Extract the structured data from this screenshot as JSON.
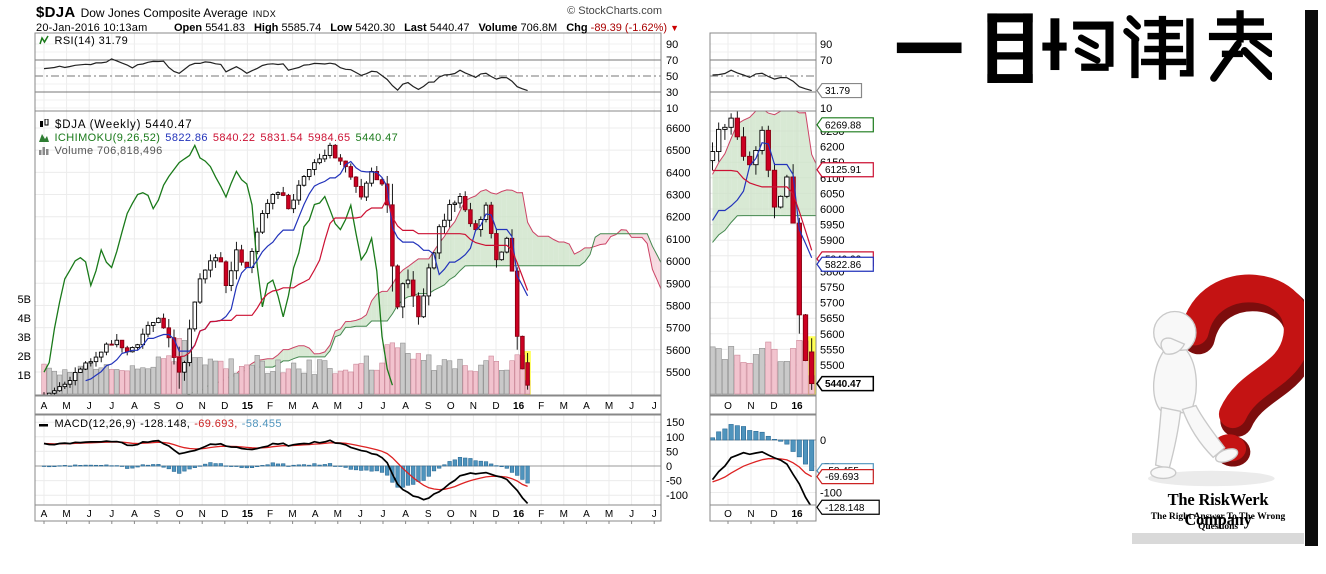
{
  "header": {
    "symbol": "$DJA",
    "name": "Dow Jones Composite Average",
    "exchange": "INDX",
    "copyright": "© StockCharts.com",
    "datetime": "20-Jan-2016 10:13am",
    "quote": {
      "open_label": "Open",
      "open": "5541.83",
      "high_label": "High",
      "high": "5585.74",
      "low_label": "Low",
      "low": "5420.30",
      "last_label": "Last",
      "last": "5440.47",
      "volume_label": "Volume",
      "volume": "706.8M",
      "chg_label": "Chg",
      "chg": "-89.39 (-1.62%)",
      "chg_direction": "down"
    }
  },
  "titles": {
    "japanese": "一目均衡表"
  },
  "logo": {
    "company": "The RiskWerk Company",
    "tagline": "The Right Answer To The Wrong Questions"
  },
  "chart_data": {
    "type": "candlestick",
    "symbol": "$DJA",
    "timeframe": "Weekly",
    "weeks": 94,
    "ichimoku_params": [
      9,
      26,
      52
    ],
    "legend": {
      "rsi_label": "RSI(14)",
      "rsi_value": "31.79",
      "price_label": "$DJA (Weekly)",
      "price_last": "5440.47",
      "ichimoku_label": "ICHIMOKU(9,26,52)",
      "ichimoku_values": [
        "5822.86",
        "5840.22",
        "5831.54",
        "5984.65",
        "5440.47"
      ],
      "ichimoku_value_colors": [
        "#2233bb",
        "#cc1133",
        "#cc1133",
        "#cc1133",
        "#1a7a1a"
      ],
      "volume_label": "Volume",
      "volume_value": "706,818,496",
      "macd_label": "MACD(12,26,9)",
      "macd_values": [
        "-128.148,",
        "-69.693,",
        "-58.455"
      ],
      "macd_value_colors": [
        "#000000",
        "#cc2222",
        "#4f94bd"
      ]
    },
    "axes": {
      "price_ticks": [
        6600,
        6500,
        6400,
        6300,
        6200,
        6100,
        6000,
        5900,
        5800,
        5700,
        5600,
        5500
      ],
      "price_ticks_mini": [
        6250,
        6200,
        6150,
        6100,
        6050,
        6000,
        5950,
        5900,
        5850,
        5800,
        5750,
        5700,
        5650,
        5600,
        5550,
        5500
      ],
      "rsi_ticks": [
        90,
        70,
        50,
        30,
        10
      ],
      "rsi_ticks_mini": [
        90,
        70,
        10
      ],
      "macd_ticks": [
        150,
        100,
        50,
        0,
        -50,
        -100
      ],
      "macd_ticks_mini": [
        0,
        -50,
        -100
      ],
      "volume_ticks": [
        "5B",
        "4B",
        "3B",
        "2B",
        "1B"
      ],
      "months": [
        "A",
        "M",
        "J",
        "J",
        "A",
        "S",
        "O",
        "N",
        "D",
        "15",
        "F",
        "M",
        "A",
        "M",
        "J",
        "J",
        "A",
        "S",
        "O",
        "N",
        "D",
        "16",
        "F",
        "M",
        "A",
        "M",
        "J",
        "J"
      ],
      "months_mini": [
        "O",
        "N",
        "D",
        "16"
      ]
    },
    "callouts": {
      "rsi_mini": [
        {
          "text": "31.79",
          "value": 31.79,
          "color": "#888888"
        }
      ],
      "price_mini": [
        {
          "text": "6269.88",
          "value": 6269.88,
          "color": "#1a7a1a"
        },
        {
          "text": "6125.91",
          "value": 6125.91,
          "color": "#cc1133"
        },
        {
          "text": "5840.22",
          "value": 5840.22,
          "color": "#cc1133"
        },
        {
          "text": "5822.86",
          "value": 5822.86,
          "color": "#2233bb"
        },
        {
          "text": "5440.47",
          "value": 5440.47,
          "color": "#000000",
          "bold": true
        }
      ],
      "macd_mini": [
        {
          "text": "-58.455",
          "value": -58.455,
          "color": "#4f94bd"
        },
        {
          "text": "-69.693",
          "value": -69.693,
          "color": "#cc2222"
        },
        {
          "text": "-128.148",
          "value": -128.148,
          "color": "#000000"
        }
      ]
    },
    "colors": {
      "candle_down": "#cc0022",
      "candle_down_edge": "#880011",
      "cloud_bull": "#cbe2c5",
      "cloud_bear": "#f6cfd8",
      "span_a": "#cc4466",
      "span_b": "#44884f",
      "tenkan": "#2233bb",
      "kijun": "#cc1133",
      "chikou": "#1a7a1a",
      "histogram": "#4f94bd",
      "histogram_edge": "#2a6a96",
      "macd_line": "#000000",
      "signal_line": "#dd2222",
      "volume_up": "#c9c9c9",
      "volume_down": "#f2c3ce",
      "highlight": "#ffff55"
    },
    "series": {
      "last_week_ohlc": [
        5541.83,
        5585.74,
        5420.3,
        5440.47
      ],
      "last_volume_billion": 0.7068,
      "last_rsi": 31.79,
      "last_macd": -128.148,
      "last_signal": -69.693,
      "close_anchors": [
        [
          0,
          5390
        ],
        [
          3,
          5430
        ],
        [
          6,
          5490
        ],
        [
          9,
          5550
        ],
        [
          12,
          5625
        ],
        [
          14,
          5640
        ],
        [
          16,
          5585
        ],
        [
          18,
          5620
        ],
        [
          20,
          5700
        ],
        [
          22,
          5745
        ],
        [
          24,
          5650
        ],
        [
          25,
          5560
        ],
        [
          26,
          5490
        ],
        [
          27,
          5560
        ],
        [
          28,
          5700
        ],
        [
          30,
          5920
        ],
        [
          32,
          6010
        ],
        [
          33,
          6030
        ],
        [
          34,
          5990
        ],
        [
          35,
          5890
        ],
        [
          36,
          5970
        ],
        [
          37,
          6040
        ],
        [
          39,
          5970
        ],
        [
          40,
          6050
        ],
        [
          42,
          6220
        ],
        [
          44,
          6310
        ],
        [
          46,
          6290
        ],
        [
          47,
          6230
        ],
        [
          49,
          6340
        ],
        [
          51,
          6410
        ],
        [
          53,
          6460
        ],
        [
          55,
          6510
        ],
        [
          57,
          6440
        ],
        [
          59,
          6390
        ],
        [
          61,
          6290
        ],
        [
          63,
          6410
        ],
        [
          65,
          6340
        ],
        [
          66,
          6240
        ],
        [
          67,
          5990
        ],
        [
          68,
          5780
        ],
        [
          69,
          5890
        ],
        [
          70,
          5930
        ],
        [
          71,
          5840
        ],
        [
          72,
          5760
        ],
        [
          73,
          5860
        ],
        [
          74,
          5960
        ],
        [
          76,
          6140
        ],
        [
          78,
          6240
        ],
        [
          80,
          6290
        ],
        [
          81,
          6240
        ],
        [
          82,
          6180
        ],
        [
          83,
          6140
        ],
        [
          84,
          6200
        ],
        [
          85,
          6240
        ],
        [
          86,
          6140
        ],
        [
          87,
          6000
        ],
        [
          88,
          6050
        ],
        [
          89,
          6090
        ],
        [
          90,
          5940
        ],
        [
          91,
          5690
        ],
        [
          92,
          5540
        ],
        [
          93,
          5440.47
        ]
      ],
      "range_anchors": [
        [
          0,
          60
        ],
        [
          10,
          55
        ],
        [
          20,
          60
        ],
        [
          24,
          90
        ],
        [
          25,
          130
        ],
        [
          26,
          150
        ],
        [
          28,
          90
        ],
        [
          32,
          70
        ],
        [
          35,
          85
        ],
        [
          40,
          70
        ],
        [
          45,
          65
        ],
        [
          50,
          60
        ],
        [
          55,
          60
        ],
        [
          60,
          65
        ],
        [
          65,
          80
        ],
        [
          66,
          120
        ],
        [
          67,
          250
        ],
        [
          68,
          160
        ],
        [
          69,
          110
        ],
        [
          72,
          100
        ],
        [
          74,
          90
        ],
        [
          78,
          80
        ],
        [
          80,
          70
        ],
        [
          84,
          70
        ],
        [
          86,
          80
        ],
        [
          88,
          70
        ],
        [
          90,
          110
        ],
        [
          91,
          150
        ],
        [
          92,
          130
        ],
        [
          93,
          120
        ]
      ],
      "volume_anchors": [
        [
          0,
          1.3
        ],
        [
          5,
          1.2
        ],
        [
          10,
          1.4
        ],
        [
          15,
          1.3
        ],
        [
          20,
          1.5
        ],
        [
          24,
          1.9
        ],
        [
          26,
          2.6
        ],
        [
          28,
          1.8
        ],
        [
          32,
          1.6
        ],
        [
          35,
          1.8
        ],
        [
          37,
          1.5
        ],
        [
          40,
          1.6
        ],
        [
          45,
          1.5
        ],
        [
          50,
          1.4
        ],
        [
          55,
          1.4
        ],
        [
          60,
          1.5
        ],
        [
          65,
          1.7
        ],
        [
          67,
          3.0
        ],
        [
          68,
          2.4
        ],
        [
          70,
          1.9
        ],
        [
          72,
          1.9
        ],
        [
          74,
          1.8
        ],
        [
          76,
          1.7
        ],
        [
          78,
          1.7
        ],
        [
          80,
          1.8
        ],
        [
          82,
          1.6
        ],
        [
          84,
          1.6
        ],
        [
          86,
          1.7
        ],
        [
          88,
          1.5
        ],
        [
          90,
          1.9
        ],
        [
          91,
          2.1
        ],
        [
          92,
          2.2
        ],
        [
          93,
          0.7068
        ]
      ],
      "rsi_anchors": [
        [
          0,
          60
        ],
        [
          2,
          62
        ],
        [
          4,
          61
        ],
        [
          6,
          63
        ],
        [
          8,
          64
        ],
        [
          10,
          65
        ],
        [
          12,
          67
        ],
        [
          13,
          71
        ],
        [
          14,
          68
        ],
        [
          15,
          67
        ],
        [
          17,
          61
        ],
        [
          19,
          65
        ],
        [
          21,
          67
        ],
        [
          23,
          69
        ],
        [
          24,
          62
        ],
        [
          25,
          57
        ],
        [
          26,
          53
        ],
        [
          27,
          59
        ],
        [
          28,
          63
        ],
        [
          30,
          66
        ],
        [
          32,
          68
        ],
        [
          34,
          64
        ],
        [
          35,
          56
        ],
        [
          36,
          60
        ],
        [
          37,
          63
        ],
        [
          38,
          58
        ],
        [
          39,
          52
        ],
        [
          40,
          56
        ],
        [
          42,
          62
        ],
        [
          44,
          66
        ],
        [
          46,
          64
        ],
        [
          47,
          58
        ],
        [
          49,
          62
        ],
        [
          51,
          64
        ],
        [
          53,
          65
        ],
        [
          55,
          66
        ],
        [
          57,
          61
        ],
        [
          58,
          57
        ],
        [
          59,
          58
        ],
        [
          60,
          54
        ],
        [
          61,
          51
        ],
        [
          62,
          53
        ],
        [
          63,
          57
        ],
        [
          64,
          55
        ],
        [
          65,
          51
        ],
        [
          66,
          47
        ],
        [
          67,
          37
        ],
        [
          68,
          33
        ],
        [
          69,
          40
        ],
        [
          70,
          42
        ],
        [
          71,
          38
        ],
        [
          72,
          34
        ],
        [
          73,
          38
        ],
        [
          74,
          42
        ],
        [
          75,
          44
        ],
        [
          76,
          48
        ],
        [
          78,
          53
        ],
        [
          80,
          56
        ],
        [
          81,
          53
        ],
        [
          82,
          51
        ],
        [
          83,
          49
        ],
        [
          84,
          53
        ],
        [
          85,
          54
        ],
        [
          86,
          50
        ],
        [
          87,
          45
        ],
        [
          88,
          47
        ],
        [
          89,
          49
        ],
        [
          90,
          43
        ],
        [
          91,
          37
        ],
        [
          92,
          33
        ],
        [
          93,
          31.79
        ]
      ],
      "macd_anchors": [
        [
          0,
          78
        ],
        [
          2,
          74
        ],
        [
          4,
          76
        ],
        [
          6,
          80
        ],
        [
          8,
          82
        ],
        [
          10,
          84
        ],
        [
          12,
          88
        ],
        [
          14,
          82
        ],
        [
          16,
          72
        ],
        [
          18,
          76
        ],
        [
          20,
          84
        ],
        [
          22,
          88
        ],
        [
          24,
          70
        ],
        [
          26,
          42
        ],
        [
          28,
          48
        ],
        [
          30,
          62
        ],
        [
          32,
          74
        ],
        [
          34,
          78
        ],
        [
          35,
          70
        ],
        [
          37,
          66
        ],
        [
          39,
          56
        ],
        [
          41,
          60
        ],
        [
          43,
          70
        ],
        [
          45,
          78
        ],
        [
          47,
          72
        ],
        [
          49,
          74
        ],
        [
          51,
          78
        ],
        [
          53,
          82
        ],
        [
          55,
          86
        ],
        [
          57,
          78
        ],
        [
          59,
          66
        ],
        [
          61,
          50
        ],
        [
          63,
          44
        ],
        [
          65,
          30
        ],
        [
          66,
          12
        ],
        [
          67,
          -30
        ],
        [
          68,
          -62
        ],
        [
          69,
          -80
        ],
        [
          70,
          -92
        ],
        [
          71,
          -102
        ],
        [
          72,
          -110
        ],
        [
          73,
          -112
        ],
        [
          74,
          -108
        ],
        [
          75,
          -98
        ],
        [
          76,
          -86
        ],
        [
          77,
          -72
        ],
        [
          78,
          -58
        ],
        [
          79,
          -46
        ],
        [
          80,
          -36
        ],
        [
          81,
          -30
        ],
        [
          82,
          -26
        ],
        [
          83,
          -24
        ],
        [
          84,
          -22
        ],
        [
          85,
          -22
        ],
        [
          86,
          -26
        ],
        [
          87,
          -34
        ],
        [
          88,
          -40
        ],
        [
          89,
          -46
        ],
        [
          90,
          -62
        ],
        [
          91,
          -85
        ],
        [
          92,
          -108
        ],
        [
          93,
          -128.148
        ]
      ]
    }
  }
}
